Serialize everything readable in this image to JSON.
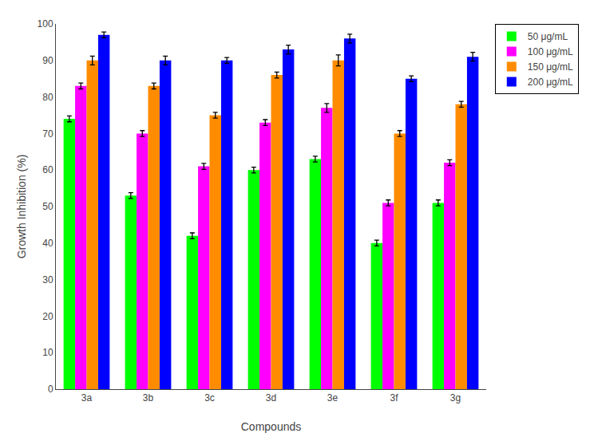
{
  "chart_data": {
    "type": "bar",
    "xlabel": "Compounds",
    "ylabel": "Growth Inhibition (%)",
    "categories": [
      "3a",
      "3b",
      "3c",
      "3d",
      "3e",
      "3f",
      "3g"
    ],
    "series": [
      {
        "name": "50 μg/mL",
        "color": "#00ff00",
        "values": [
          74,
          53,
          42,
          60,
          63,
          40,
          51
        ],
        "errors": [
          0.8,
          0.8,
          0.8,
          0.8,
          0.8,
          0.8,
          0.8
        ]
      },
      {
        "name": "100 μg/mL",
        "color": "#ff00ff",
        "values": [
          83,
          70,
          61,
          73,
          77,
          51,
          62
        ],
        "errors": [
          0.8,
          0.8,
          0.8,
          0.8,
          1.2,
          0.8,
          0.8
        ]
      },
      {
        "name": "150 μg/mL",
        "color": "#ff8c00",
        "values": [
          90,
          83,
          75,
          86,
          90,
          70,
          78
        ],
        "errors": [
          1.2,
          0.8,
          0.8,
          0.8,
          1.5,
          0.8,
          0.8
        ]
      },
      {
        "name": "200 μg/mL",
        "color": "#0000ff",
        "values": [
          97,
          90,
          90,
          93,
          96,
          85,
          91
        ],
        "errors": [
          0.8,
          1.2,
          0.8,
          1.2,
          1.2,
          0.8,
          1.2
        ]
      }
    ],
    "ylim": [
      0,
      100
    ],
    "yticks": [
      0,
      10,
      20,
      30,
      40,
      50,
      60,
      70,
      80,
      90,
      100
    ],
    "grid": false,
    "legend": "upper right"
  }
}
